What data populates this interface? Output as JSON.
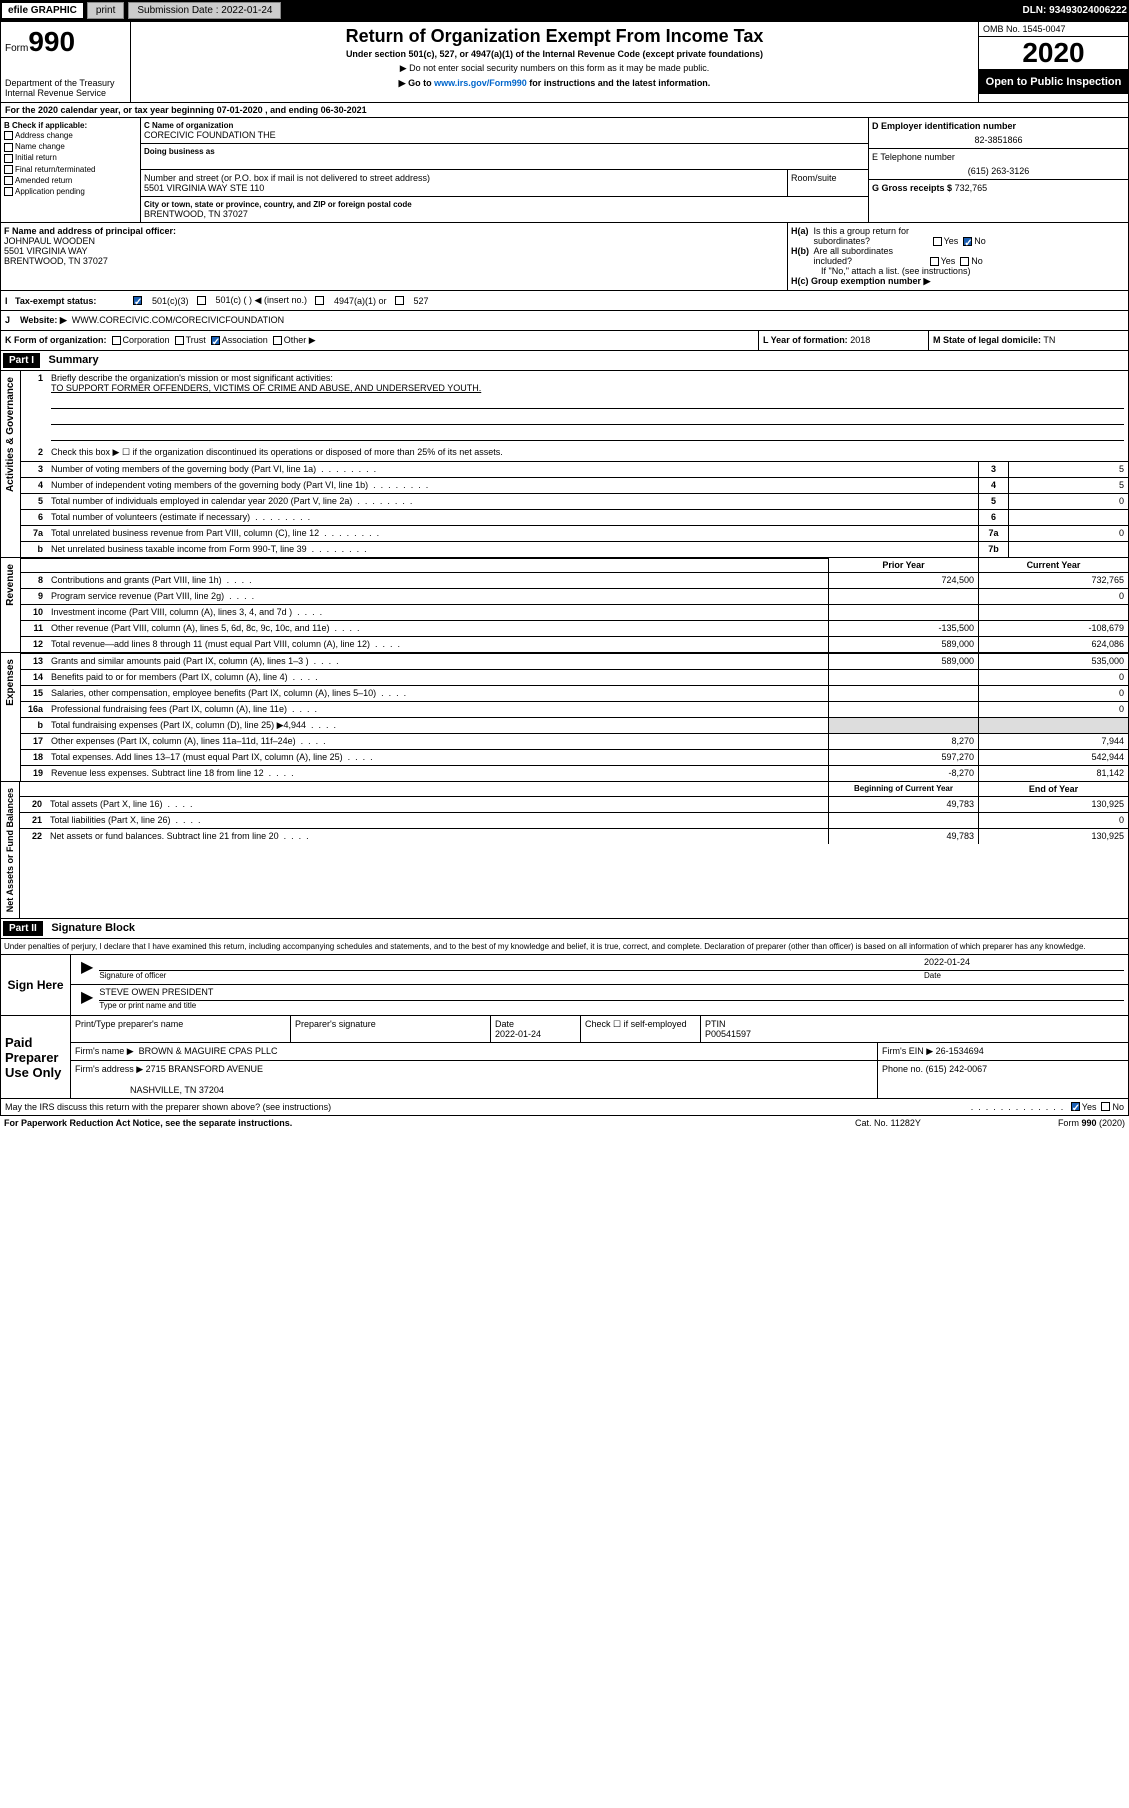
{
  "topBar": {
    "efile": "efile GRAPHIC",
    "print": "print",
    "submissionLabel": "Submission Date : 2022-01-24",
    "dln": "DLN: 93493024006222"
  },
  "header": {
    "formLabel": "Form",
    "formNumber": "990",
    "dept": "Department of the Treasury\nInternal Revenue Service",
    "title": "Return of Organization Exempt From Income Tax",
    "subtitle": "Under section 501(c), 527, or 4947(a)(1) of the Internal Revenue Code (except private foundations)",
    "instr1": "▶ Do not enter social security numbers on this form as it may be made public.",
    "instr2": "▶ Go to www.irs.gov/Form990 for instructions and the latest information.",
    "instrLink": "www.irs.gov/Form990",
    "omb": "OMB No. 1545-0047",
    "year": "2020",
    "openPublic": "Open to Public Inspection"
  },
  "sectionA": {
    "calendarYear": "For the 2020 calendar year, or tax year beginning 07-01-2020     , and ending 06-30-2021",
    "bHeader": "B Check if applicable:",
    "bOptions": [
      "Address change",
      "Name change",
      "Initial return",
      "Final return/terminated",
      "Amended return",
      "Application pending"
    ],
    "cNameLabel": "C Name of organization",
    "cName": "CORECIVIC FOUNDATION THE",
    "dbaLabel": "Doing business as",
    "addrLabel": "Number and street (or P.O. box if mail is not delivered to street address)",
    "addr": "5501 VIRGINIA WAY STE 110",
    "roomLabel": "Room/suite",
    "cityLabel": "City or town, state or province, country, and ZIP or foreign postal code",
    "city": "BRENTWOOD, TN  37027",
    "dLabel": "D Employer identification number",
    "dVal": "82-3851866",
    "eLabel": "E Telephone number",
    "eVal": "(615) 263-3126",
    "gLabel": "G Gross receipts $",
    "gVal": "732,765",
    "fLabel": "F Name and address of principal officer:",
    "fName": "JOHNPAUL WOODEN",
    "fAddr": "5501 VIRGINIA WAY",
    "fCity": "BRENTWOOD, TN  37027",
    "haLabel": "H(a)  Is this a group return for subordinates?",
    "hbLabel": "H(b)  Are all subordinates included?",
    "hbNote": "If \"No,\" attach a list. (see instructions)",
    "hcLabel": "H(c)  Group exemption number ▶",
    "yes": "Yes",
    "no": "No"
  },
  "taxExempt": {
    "label": "Tax-exempt status:",
    "opt1": "501(c)(3)",
    "opt2": "501(c) (   ) ◀ (insert no.)",
    "opt3": "4947(a)(1) or",
    "opt4": "527"
  },
  "jRow": {
    "label": "J",
    "website": "Website: ▶",
    "websiteVal": "WWW.CORECIVIC.COM/CORECIVICFOUNDATION"
  },
  "kRow": {
    "label": "K Form of organization:",
    "opts": [
      "Corporation",
      "Trust",
      "Association",
      "Other ▶"
    ],
    "lLabel": "L Year of formation:",
    "lVal": "2018",
    "mLabel": "M State of legal domicile:",
    "mVal": "TN"
  },
  "part1": {
    "partLabel": "Part I",
    "title": "Summary",
    "line1": "Briefly describe the organization's mission or most significant activities:",
    "line1Val": "TO SUPPORT FORMER OFFENDERS, VICTIMS OF CRIME AND ABUSE, AND UNDERSERVED YOUTH.",
    "line2": "Check this box ▶ ☐  if the organization discontinued its operations or disposed of more than 25% of its net assets.",
    "sideLabels": {
      "gov": "Activities & Governance",
      "rev": "Revenue",
      "exp": "Expenses",
      "net": "Net Assets or Fund Balances"
    },
    "lines": [
      {
        "n": "3",
        "t": "Number of voting members of the governing body (Part VI, line 1a)",
        "box": "3",
        "v": "5"
      },
      {
        "n": "4",
        "t": "Number of independent voting members of the governing body (Part VI, line 1b)",
        "box": "4",
        "v": "5"
      },
      {
        "n": "5",
        "t": "Total number of individuals employed in calendar year 2020 (Part V, line 2a)",
        "box": "5",
        "v": "0"
      },
      {
        "n": "6",
        "t": "Total number of volunteers (estimate if necessary)",
        "box": "6",
        "v": ""
      },
      {
        "n": "7a",
        "t": "Total unrelated business revenue from Part VIII, column (C), line 12",
        "box": "7a",
        "v": "0"
      },
      {
        "n": "b",
        "t": "Net unrelated business taxable income from Form 990-T, line 39",
        "box": "7b",
        "v": ""
      }
    ],
    "priorLabel": "Prior Year",
    "currLabel": "Current Year",
    "revLines": [
      {
        "n": "8",
        "t": "Contributions and grants (Part VIII, line 1h)",
        "p": "724,500",
        "c": "732,765"
      },
      {
        "n": "9",
        "t": "Program service revenue (Part VIII, line 2g)",
        "p": "",
        "c": "0"
      },
      {
        "n": "10",
        "t": "Investment income (Part VIII, column (A), lines 3, 4, and 7d )",
        "p": "",
        "c": ""
      },
      {
        "n": "11",
        "t": "Other revenue (Part VIII, column (A), lines 5, 6d, 8c, 9c, 10c, and 11e)",
        "p": "-135,500",
        "c": "-108,679"
      },
      {
        "n": "12",
        "t": "Total revenue—add lines 8 through 11 (must equal Part VIII, column (A), line 12)",
        "p": "589,000",
        "c": "624,086"
      }
    ],
    "expLines": [
      {
        "n": "13",
        "t": "Grants and similar amounts paid (Part IX, column (A), lines 1–3 )",
        "p": "589,000",
        "c": "535,000"
      },
      {
        "n": "14",
        "t": "Benefits paid to or for members (Part IX, column (A), line 4)",
        "p": "",
        "c": "0"
      },
      {
        "n": "15",
        "t": "Salaries, other compensation, employee benefits (Part IX, column (A), lines 5–10)",
        "p": "",
        "c": "0"
      },
      {
        "n": "16a",
        "t": "Professional fundraising fees (Part IX, column (A), line 11e)",
        "p": "",
        "c": "0"
      },
      {
        "n": "b",
        "t": "Total fundraising expenses (Part IX, column (D), line 25) ▶4,944",
        "p": "grey",
        "c": "grey"
      },
      {
        "n": "17",
        "t": "Other expenses (Part IX, column (A), lines 11a–11d, 11f–24e)",
        "p": "8,270",
        "c": "7,944"
      },
      {
        "n": "18",
        "t": "Total expenses. Add lines 13–17 (must equal Part IX, column (A), line 25)",
        "p": "597,270",
        "c": "542,944"
      },
      {
        "n": "19",
        "t": "Revenue less expenses. Subtract line 18 from line 12",
        "p": "-8,270",
        "c": "81,142"
      }
    ],
    "begLabel": "Beginning of Current Year",
    "endLabel": "End of Year",
    "netLines": [
      {
        "n": "20",
        "t": "Total assets (Part X, line 16)",
        "p": "49,783",
        "c": "130,925"
      },
      {
        "n": "21",
        "t": "Total liabilities (Part X, line 26)",
        "p": "",
        "c": "0"
      },
      {
        "n": "22",
        "t": "Net assets or fund balances. Subtract line 21 from line 20",
        "p": "49,783",
        "c": "130,925"
      }
    ]
  },
  "part2": {
    "partLabel": "Part II",
    "title": "Signature Block",
    "declaration": "Under penalties of perjury, I declare that I have examined this return, including accompanying schedules and statements, and to the best of my knowledge and belief, it is true, correct, and complete. Declaration of preparer (other than officer) is based on all information of which preparer has any knowledge.",
    "signHere": "Sign Here",
    "sigOfficer": "Signature of officer",
    "sigDate": "2022-01-24",
    "dateLabel": "Date",
    "officerName": "STEVE OWEN  PRESIDENT",
    "typeName": "Type or print name and title",
    "paidPrep": "Paid Preparer Use Only",
    "prepName": "Print/Type preparer's name",
    "prepSig": "Preparer's signature",
    "prepDate": "Date",
    "prepDateVal": "2022-01-24",
    "checkSelf": "Check ☐  if self-employed",
    "ptin": "PTIN",
    "ptinVal": "P00541597",
    "firmName": "Firm's name      ▶",
    "firmNameVal": "BROWN & MAGUIRE CPAS PLLC",
    "firmEin": "Firm's EIN ▶",
    "firmEinVal": "26-1534694",
    "firmAddr": "Firm's address ▶",
    "firmAddrVal": "2715 BRANSFORD AVENUE",
    "firmCity": "NASHVILLE, TN  37204",
    "phone": "Phone no.",
    "phoneVal": "(615) 242-0067",
    "discuss": "May the IRS discuss this return with the preparer shown above? (see instructions)"
  },
  "footer": {
    "paperwork": "For Paperwork Reduction Act Notice, see the separate instructions.",
    "catNo": "Cat. No. 11282Y",
    "formRef": "Form 990 (2020)"
  },
  "colors": {
    "black": "#000000",
    "white": "#ffffff",
    "blue": "#0066cc",
    "green": "#0a7a3a",
    "grey": "#dddddd"
  }
}
